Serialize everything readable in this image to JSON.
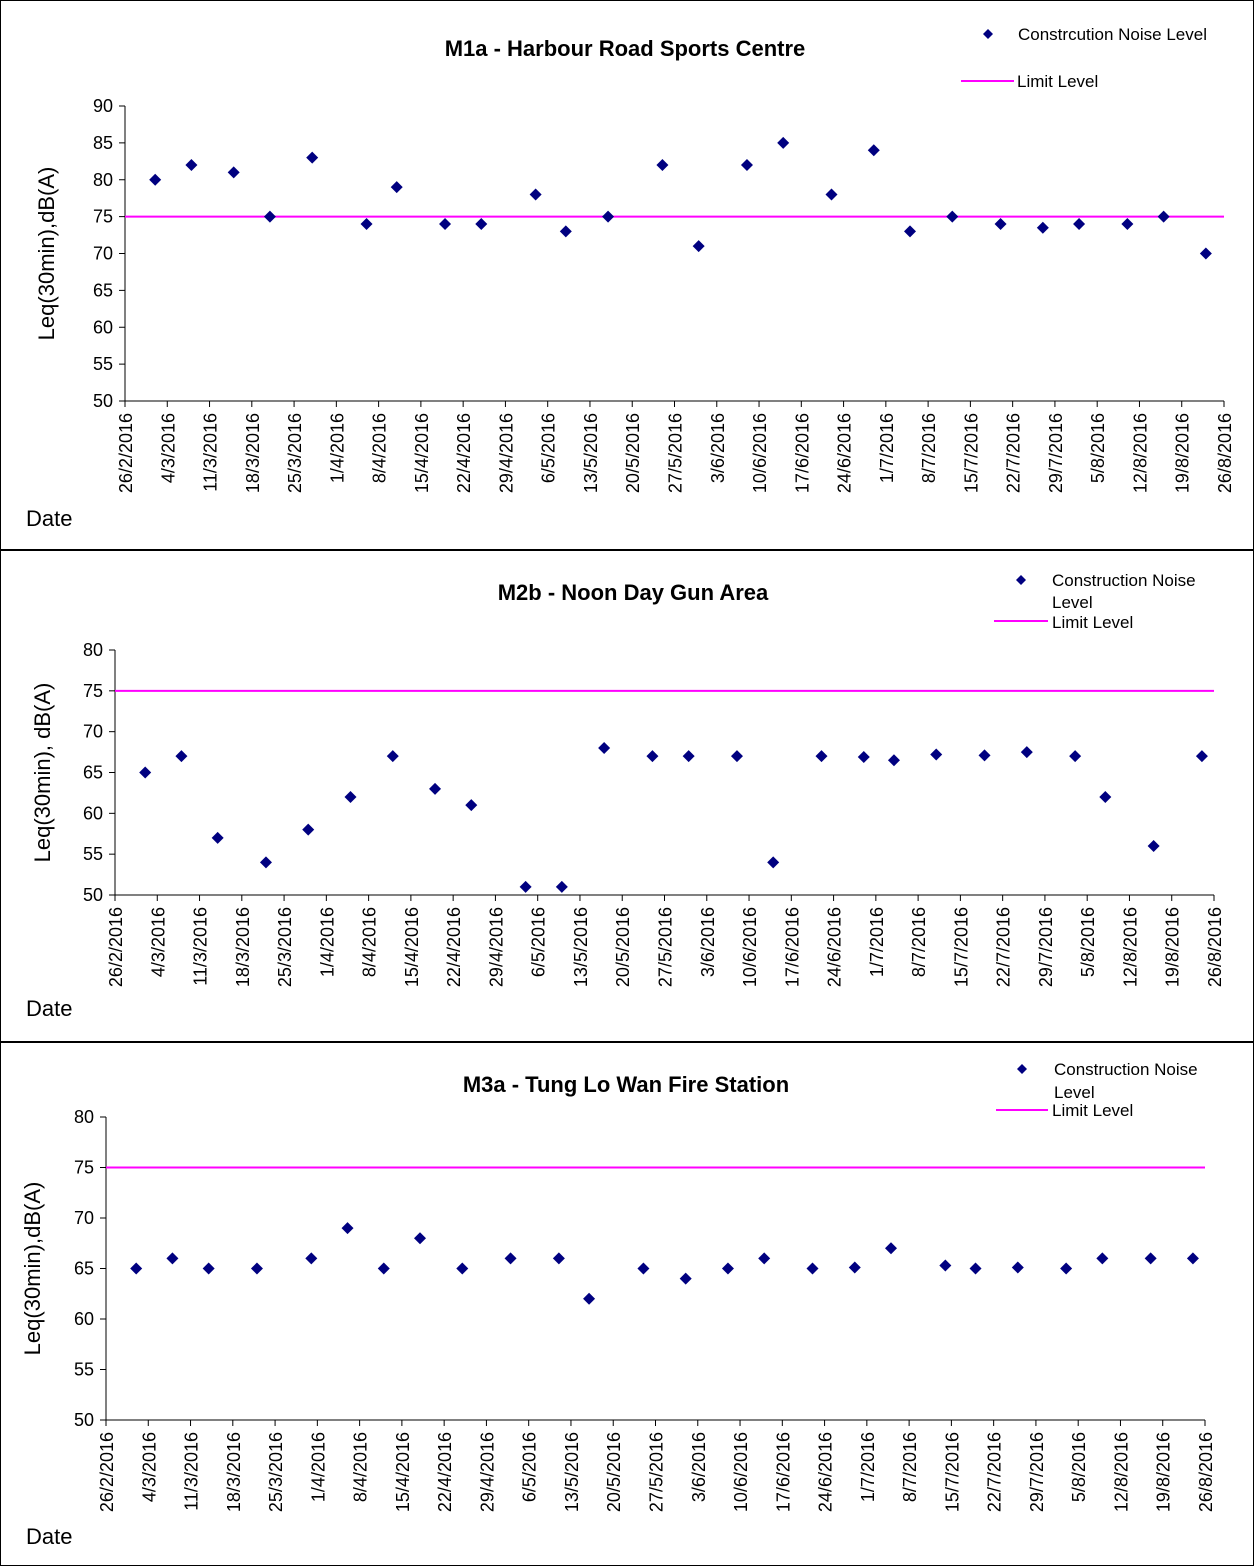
{
  "date_ticks": [
    "26/2/2016",
    "4/3/2016",
    "11/3/2016",
    "18/3/2016",
    "25/3/2016",
    "1/4/2016",
    "8/4/2016",
    "15/4/2016",
    "22/4/2016",
    "29/4/2016",
    "6/5/2016",
    "13/5/2016",
    "20/5/2016",
    "27/5/2016",
    "3/6/2016",
    "10/6/2016",
    "17/6/2016",
    "24/6/2016",
    "1/7/2016",
    "8/7/2016",
    "15/7/2016",
    "22/7/2016",
    "29/7/2016",
    "5/8/2016",
    "12/8/2016",
    "19/8/2016",
    "26/8/2016"
  ],
  "colors": {
    "marker": "#000080",
    "limit": "#ff00ff",
    "axis": "#000000"
  },
  "chart_data": [
    {
      "type": "scatter",
      "title": "M1a - Harbour Road Sports Centre",
      "xlabel": "Date",
      "ylabel": "Leq(30min),dB(A)",
      "xlim": [
        "26/2/2016",
        "26/8/2016"
      ],
      "ylim": [
        50,
        90
      ],
      "yticks": [
        50,
        55,
        60,
        65,
        70,
        75,
        80,
        85,
        90
      ],
      "legend": {
        "position": "top-right",
        "marker_label": "Constrcution Noise Level",
        "limit_label": "Limit Level"
      },
      "series": [
        {
          "name": "Constrcution Noise Level",
          "points": [
            [
              "2/3/2016",
              80
            ],
            [
              "8/3/2016",
              82
            ],
            [
              "15/3/2016",
              81
            ],
            [
              "21/3/2016",
              75
            ],
            [
              "28/3/2016",
              83
            ],
            [
              "6/4/2016",
              74
            ],
            [
              "11/4/2016",
              79
            ],
            [
              "19/4/2016",
              74
            ],
            [
              "25/4/2016",
              74
            ],
            [
              "4/5/2016",
              78
            ],
            [
              "9/5/2016",
              73
            ],
            [
              "16/5/2016",
              75
            ],
            [
              "25/5/2016",
              82
            ],
            [
              "31/5/2016",
              71
            ],
            [
              "8/6/2016",
              82
            ],
            [
              "14/6/2016",
              85
            ],
            [
              "22/6/2016",
              78
            ],
            [
              "29/6/2016",
              84
            ],
            [
              "5/7/2016",
              73
            ],
            [
              "12/7/2016",
              75
            ],
            [
              "20/7/2016",
              74
            ],
            [
              "27/7/2016",
              73.5
            ],
            [
              "2/8/2016",
              74
            ],
            [
              "10/8/2016",
              74
            ],
            [
              "16/8/2016",
              75
            ],
            [
              "23/8/2016",
              70
            ]
          ]
        },
        {
          "name": "Limit Level",
          "type": "line",
          "value": 75
        }
      ]
    },
    {
      "type": "scatter",
      "title": "M2b - Noon Day Gun Area",
      "xlabel": "Date",
      "ylabel": "Leq(30min), dB(A)",
      "xlim": [
        "26/2/2016",
        "26/8/2016"
      ],
      "ylim": [
        50,
        80
      ],
      "yticks": [
        50,
        55,
        60,
        65,
        70,
        75,
        80
      ],
      "legend": {
        "position": "top-right",
        "marker_label": "Construction Noise Level",
        "limit_label": "Limit Level"
      },
      "series": [
        {
          "name": "Construction Noise Level",
          "points": [
            [
              "2/3/2016",
              65
            ],
            [
              "8/3/2016",
              67
            ],
            [
              "14/3/2016",
              57
            ],
            [
              "22/3/2016",
              54
            ],
            [
              "29/3/2016",
              58
            ],
            [
              "5/4/2016",
              62
            ],
            [
              "12/4/2016",
              67
            ],
            [
              "19/4/2016",
              63
            ],
            [
              "25/4/2016",
              61
            ],
            [
              "4/5/2016",
              51
            ],
            [
              "10/5/2016",
              51
            ],
            [
              "17/5/2016",
              68
            ],
            [
              "25/5/2016",
              67
            ],
            [
              "31/5/2016",
              67
            ],
            [
              "8/6/2016",
              67
            ],
            [
              "14/6/2016",
              54
            ],
            [
              "22/6/2016",
              67
            ],
            [
              "29/6/2016",
              66.9
            ],
            [
              "4/7/2016",
              66.5
            ],
            [
              "11/7/2016",
              67.2
            ],
            [
              "19/7/2016",
              67.1
            ],
            [
              "26/7/2016",
              67.5
            ],
            [
              "3/8/2016",
              67
            ],
            [
              "8/8/2016",
              62
            ],
            [
              "16/8/2016",
              56
            ],
            [
              "24/8/2016",
              67
            ]
          ]
        },
        {
          "name": "Limit Level",
          "type": "line",
          "value": 75
        }
      ]
    },
    {
      "type": "scatter",
      "title": "M3a - Tung Lo Wan Fire Station",
      "xlabel": "Date",
      "ylabel": "Leq(30min),dB(A)",
      "xlim": [
        "26/2/2016",
        "26/8/2016"
      ],
      "ylim": [
        50,
        80
      ],
      "yticks": [
        50,
        55,
        60,
        65,
        70,
        75,
        80
      ],
      "legend": {
        "position": "top-right",
        "marker_label": "Construction Noise Level",
        "limit_label": "Limit Level"
      },
      "series": [
        {
          "name": "Construction Noise Level",
          "points": [
            [
              "2/3/2016",
              65
            ],
            [
              "8/3/2016",
              66
            ],
            [
              "14/3/2016",
              65
            ],
            [
              "22/3/2016",
              65
            ],
            [
              "31/3/2016",
              66
            ],
            [
              "6/4/2016",
              69
            ],
            [
              "12/4/2016",
              65
            ],
            [
              "18/4/2016",
              68
            ],
            [
              "25/4/2016",
              65
            ],
            [
              "3/5/2016",
              66
            ],
            [
              "11/5/2016",
              66
            ],
            [
              "16/5/2016",
              62
            ],
            [
              "25/5/2016",
              65
            ],
            [
              "1/6/2016",
              64
            ],
            [
              "8/6/2016",
              65
            ],
            [
              "14/6/2016",
              66
            ],
            [
              "22/6/2016",
              65
            ],
            [
              "29/6/2016",
              65.1
            ],
            [
              "5/7/2016",
              67
            ],
            [
              "14/7/2016",
              65.3
            ],
            [
              "19/7/2016",
              65
            ],
            [
              "26/7/2016",
              65.1
            ],
            [
              "3/8/2016",
              65
            ],
            [
              "9/8/2016",
              66
            ],
            [
              "17/8/2016",
              66
            ],
            [
              "24/8/2016",
              66
            ]
          ]
        },
        {
          "name": "Limit Level",
          "type": "line",
          "value": 75
        }
      ]
    }
  ]
}
